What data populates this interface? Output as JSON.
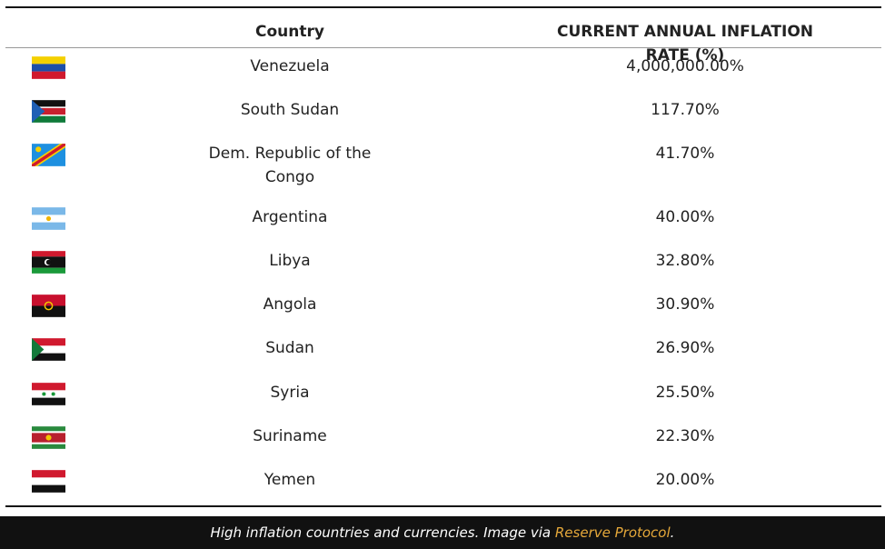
{
  "table": {
    "headers": [
      "Country",
      "CURRENT ANNUAL INFLATION RATE (%)"
    ],
    "rows": [
      [
        "Venezuela",
        "4,000,000.00%"
      ],
      [
        "South Sudan",
        "117.70%"
      ],
      [
        "Dem. Republic of the Congo",
        "41.70%"
      ],
      [
        "Argentina",
        "40.00%"
      ],
      [
        "Libya",
        "32.80%"
      ],
      [
        "Angola",
        "30.90%"
      ],
      [
        "Sudan",
        "26.90%"
      ],
      [
        "Syria",
        "25.50%"
      ],
      [
        "Suriname",
        "22.30%"
      ],
      [
        "Yemen",
        "20.00%"
      ]
    ]
  },
  "caption": {
    "text": "High inflation countries and currencies. Image via ",
    "link": "Reserve Protocol",
    "end": "."
  }
}
